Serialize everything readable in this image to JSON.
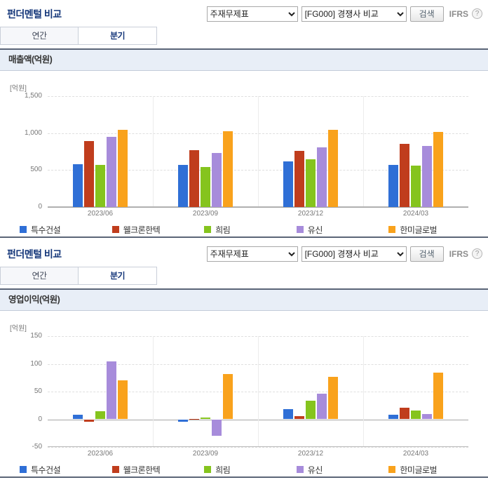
{
  "panels": [
    {
      "header": {
        "title": "펀더멘털 비교",
        "statement_select": "주재무제표",
        "compare_select": "[FG000] 경쟁사 비교",
        "search_button": "검색",
        "ifrs_label": "IFRS",
        "help_icon": "?"
      },
      "tabs": {
        "annual": "연간",
        "quarterly": "분기"
      },
      "section_title": "매출액(억원)",
      "chart_data": {
        "type": "bar",
        "title": "매출액(억원)",
        "unit_label": "[억원]",
        "categories": [
          "2023/06",
          "2023/09",
          "2023/12",
          "2024/03"
        ],
        "series": [
          {
            "name": "특수건설",
            "color": "#2f6fd6",
            "values": [
              580,
              570,
              620,
              570
            ]
          },
          {
            "name": "웰크론한텍",
            "color": "#c03d1d",
            "values": [
              895,
              770,
              760,
              855
            ]
          },
          {
            "name": "희림",
            "color": "#85c41e",
            "values": [
              570,
              545,
              650,
              560
            ]
          },
          {
            "name": "유신",
            "color": "#a78cdb",
            "values": [
              950,
              730,
              810,
              830
            ]
          },
          {
            "name": "한미글로벌",
            "color": "#f9a21c",
            "values": [
              1045,
              1025,
              1045,
              1020
            ]
          }
        ],
        "ylim": [
          0,
          1500
        ],
        "yticks": [
          0,
          500,
          1000,
          1500
        ],
        "grid": true,
        "legend_position": "bottom"
      }
    },
    {
      "header": {
        "title": "펀더멘털 비교",
        "statement_select": "주재무제표",
        "compare_select": "[FG000] 경쟁사 비교",
        "search_button": "검색",
        "ifrs_label": "IFRS",
        "help_icon": "?"
      },
      "tabs": {
        "annual": "연간",
        "quarterly": "분기"
      },
      "section_title": "영업이익(억원)",
      "chart_data": {
        "type": "bar",
        "title": "영업이익(억원)",
        "unit_label": "[억원]",
        "categories": [
          "2023/06",
          "2023/09",
          "2023/12",
          "2024/03"
        ],
        "series": [
          {
            "name": "특수건설",
            "color": "#2f6fd6",
            "values": [
              8,
              -4,
              18,
              8
            ]
          },
          {
            "name": "웰크론한텍",
            "color": "#c03d1d",
            "values": [
              -5,
              1,
              6,
              21
            ]
          },
          {
            "name": "희림",
            "color": "#85c41e",
            "values": [
              15,
              3,
              33,
              16
            ]
          },
          {
            "name": "유신",
            "color": "#a78cdb",
            "values": [
              105,
              -30,
              46,
              10
            ]
          },
          {
            "name": "한미글로벌",
            "color": "#f9a21c",
            "values": [
              70,
              82,
              76,
              84
            ]
          }
        ],
        "ylim": [
          -50,
          150
        ],
        "yticks": [
          -50,
          0,
          50,
          100,
          150
        ],
        "grid": true,
        "legend_position": "bottom"
      }
    }
  ]
}
